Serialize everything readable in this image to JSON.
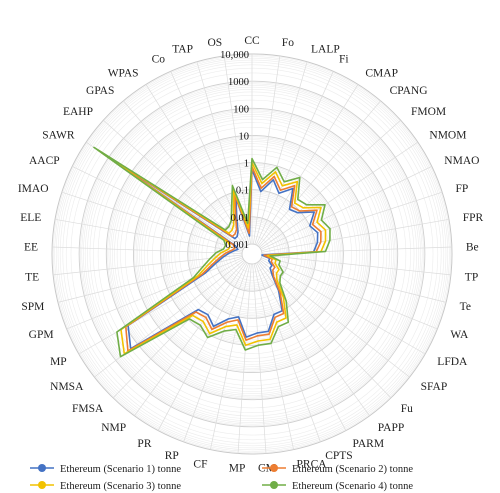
{
  "chart_data": {
    "type": "radar",
    "scale": "log",
    "rlim": [
      0.001,
      10000
    ],
    "grid": true,
    "legend_position": "bottom",
    "ticks": [
      {
        "value": 0.001,
        "label": "0.001"
      },
      {
        "value": 0.01,
        "label": "0.01"
      },
      {
        "value": 0.1,
        "label": "0.1"
      },
      {
        "value": 1,
        "label": "1"
      },
      {
        "value": 10,
        "label": "10"
      },
      {
        "value": 100,
        "label": "100"
      },
      {
        "value": 1000,
        "label": "1000"
      },
      {
        "value": 10000,
        "label": "10,000"
      }
    ],
    "categories": [
      "CC",
      "Fo",
      "LALP",
      "Fi",
      "CMAP",
      "CPANG",
      "FMOM",
      "NMOM",
      "NMAO",
      "FP",
      "FPR",
      "Be",
      "TP",
      "Te",
      "WA",
      "LFDA",
      "SFAP",
      "Fu",
      "PAPP",
      "PARM",
      "CPTS",
      "PRCA",
      "CM",
      "MP",
      "CF",
      "RP",
      "PR",
      "NMP",
      "FMSA",
      "NMSA",
      "MP",
      "GPM",
      "SPM",
      "TE",
      "EE",
      "ELE",
      "IMAO",
      "AACP",
      "SAWR",
      "EAHP",
      "GPAS",
      "WPAS",
      "Co",
      "TAP",
      "OS"
    ],
    "series": [
      {
        "name": "Ethereum (Scenario 1) tonne",
        "color": "#4472c4",
        "values": [
          0.55,
          0.09,
          0.3,
          0.12,
          0.3,
          0.06,
          0.08,
          0.25,
          0.1,
          0.15,
          0.12,
          0.08,
          0.001,
          0.002,
          0.002,
          0.003,
          0.003,
          0.005,
          0.02,
          0.1,
          0.1,
          0.35,
          0.35,
          0.5,
          0.1,
          0.15,
          0.45,
          0.25,
          0.3,
          200,
          80,
          0.03,
          0.01,
          0.005,
          0.003,
          0.002,
          0.0015,
          0.002,
          1500,
          0.003,
          0.003,
          0.004,
          0.01,
          0.06,
          0.002
        ]
      },
      {
        "name": "Ethereum (Scenario 2) tonne",
        "color": "#ed7d31",
        "values": [
          0.7,
          0.12,
          0.4,
          0.16,
          0.4,
          0.08,
          0.1,
          0.33,
          0.13,
          0.2,
          0.16,
          0.1,
          0.0012,
          0.0025,
          0.0025,
          0.004,
          0.004,
          0.006,
          0.025,
          0.13,
          0.13,
          0.45,
          0.45,
          0.65,
          0.13,
          0.2,
          0.6,
          0.33,
          0.4,
          270,
          100,
          0.04,
          0.013,
          0.0065,
          0.004,
          0.0025,
          0.002,
          0.0025,
          2000,
          0.004,
          0.004,
          0.005,
          0.013,
          0.08,
          0.0025
        ]
      },
      {
        "name": "Ethereum (Scenario 3) tonne",
        "color": "#f2c200",
        "values": [
          1.0,
          0.18,
          0.6,
          0.24,
          0.6,
          0.12,
          0.15,
          0.5,
          0.2,
          0.3,
          0.24,
          0.15,
          0.0016,
          0.0035,
          0.0035,
          0.006,
          0.006,
          0.009,
          0.04,
          0.2,
          0.2,
          0.7,
          0.7,
          1.0,
          0.2,
          0.3,
          0.9,
          0.5,
          0.6,
          400,
          160,
          0.06,
          0.02,
          0.01,
          0.006,
          0.0035,
          0.003,
          0.004,
          3000,
          0.006,
          0.006,
          0.008,
          0.02,
          0.12,
          0.004
        ]
      },
      {
        "name": "Ethereum (Scenario 4) tonne",
        "color": "#70ad47",
        "values": [
          1.4,
          0.25,
          0.9,
          0.35,
          0.9,
          0.18,
          0.22,
          0.75,
          0.3,
          0.45,
          0.35,
          0.22,
          0.002,
          0.005,
          0.005,
          0.009,
          0.009,
          0.013,
          0.06,
          0.3,
          0.3,
          1.0,
          1.0,
          1.5,
          0.3,
          0.45,
          1.3,
          0.75,
          0.9,
          600,
          240,
          0.09,
          0.03,
          0.015,
          0.009,
          0.005,
          0.0045,
          0.006,
          4500,
          0.009,
          0.009,
          0.012,
          0.03,
          0.18,
          0.006
        ]
      }
    ]
  }
}
